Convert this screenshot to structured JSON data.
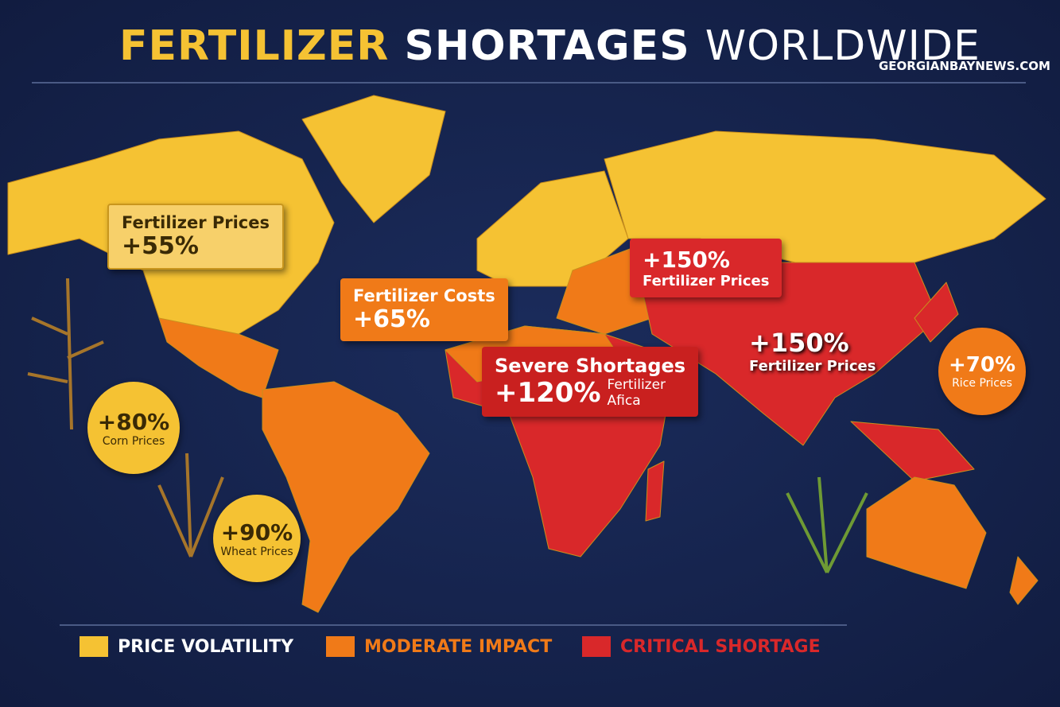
{
  "header": {
    "title_parts": [
      "FERTILIZER",
      "SHORTAGES",
      "WORLDWIDE"
    ],
    "source": "GEORGIANBAYNEWS.COM"
  },
  "callouts": [
    {
      "label": "Fertilizer Prices",
      "value": "+55%"
    },
    {
      "label": "Fertilizer Costs",
      "value": "+65%"
    },
    {
      "value": "+150%",
      "label": "Fertilizer Prices"
    },
    {
      "label": "Severe Shortages",
      "value": "+120%",
      "sub": "Fertilizer Afica"
    },
    {
      "value": "+150%",
      "label": "Fertilizer Prices"
    }
  ],
  "badges": [
    {
      "value": "+80%",
      "label": "Corn Prices"
    },
    {
      "value": "+90%",
      "label": "Wheat Prices"
    },
    {
      "value": "+70%",
      "label": "Rice Prices"
    }
  ],
  "legend": [
    {
      "label": "PRICE VOLATILITY",
      "color": "#f5c233"
    },
    {
      "label": "MODERATE IMPACT",
      "color": "#f07a18"
    },
    {
      "label": "CRITICAL SHORTAGE",
      "color": "#d9282a"
    }
  ]
}
